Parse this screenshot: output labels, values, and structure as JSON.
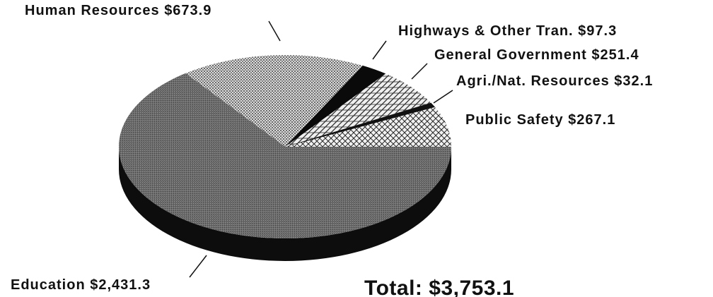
{
  "chart_data": {
    "type": "pie",
    "categories": [
      "Public Safety",
      "Agri./Nat. Resources",
      "General Government",
      "Highways & Other Tran.",
      "Human Resources",
      "Education"
    ],
    "values": [
      267.1,
      32.1,
      251.4,
      97.3,
      673.9,
      2431.3
    ],
    "value_labels": [
      "$267.1",
      "$32.1",
      "$251.4",
      "$97.3",
      "$673.9",
      "$2,431.3"
    ],
    "colors": [
      "#f2f2f2",
      "#111111",
      "#efefef",
      "#0a0a0a",
      "#dcdcdc",
      "#6a6a6a"
    ],
    "annotation": "Total:  $3,753.1"
  }
}
